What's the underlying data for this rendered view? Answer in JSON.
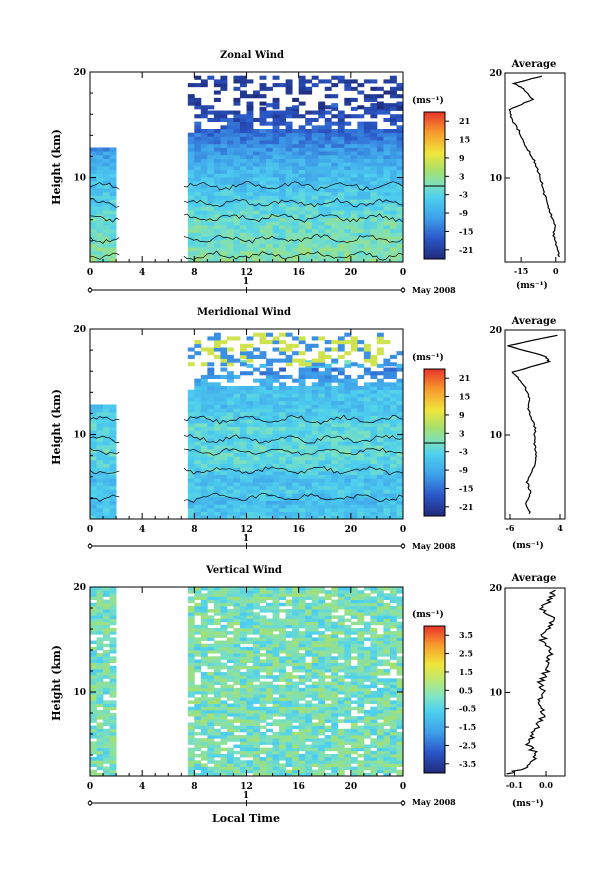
{
  "chart_data": [
    {
      "type": "heatmap",
      "title": "Zonal Wind",
      "ylabel": "Height (km)",
      "unit": "(ms⁻¹)",
      "xlim": [
        0,
        24
      ],
      "ylim": [
        2,
        20
      ],
      "x_ticks": [
        "0",
        "4",
        "8",
        "12",
        "16",
        "20",
        "0"
      ],
      "y_ticks": [
        "10",
        "20"
      ],
      "date_label": "May 2008",
      "day_label": "1",
      "colorbar_ticks": [
        "21",
        "15",
        "9",
        "3",
        "-3",
        "-9",
        "-15",
        "-21"
      ],
      "colorbar_range": [
        -24,
        24
      ],
      "data_gaps_hours": [
        [
          2.3,
          7.2
        ]
      ],
      "profile": {
        "title": "Average",
        "xlabel": "(ms⁻¹)",
        "x_ticks": [
          "-15",
          "0"
        ],
        "xlim": [
          -22,
          4
        ],
        "y_ticks": [
          "10",
          "20"
        ],
        "heights_km": [
          2.5,
          3.5,
          4.5,
          5.5,
          6.5,
          7.5,
          8.5,
          9.5,
          10.5,
          11.5,
          12.5,
          13.5,
          14.5,
          15.5,
          16.5,
          17.5,
          18.5,
          19.0,
          19.7
        ],
        "values": [
          1.5,
          0.3,
          -1.0,
          -0.5,
          -2.0,
          -3.5,
          -5.0,
          -6.0,
          -7.5,
          -9.0,
          -11.5,
          -14.0,
          -16.0,
          -19.0,
          -20.0,
          -10.0,
          -14.0,
          -18.0,
          -6.0
        ]
      }
    },
    {
      "type": "heatmap",
      "title": "Meridional Wind",
      "ylabel": "Height (km)",
      "unit": "(ms⁻¹)",
      "xlim": [
        0,
        24
      ],
      "ylim": [
        2,
        20
      ],
      "x_ticks": [
        "0",
        "4",
        "8",
        "12",
        "16",
        "20",
        "0"
      ],
      "y_ticks": [
        "10",
        "20"
      ],
      "date_label": "May 2008",
      "day_label": "1",
      "colorbar_ticks": [
        "21",
        "15",
        "9",
        "3",
        "-3",
        "-9",
        "-15",
        "-21"
      ],
      "colorbar_range": [
        -24,
        24
      ],
      "data_gaps_hours": [
        [
          2.3,
          7.2
        ]
      ],
      "profile": {
        "title": "Average",
        "xlabel": "(ms⁻¹)",
        "x_ticks": [
          "-6",
          "4"
        ],
        "xlim": [
          -7,
          5
        ],
        "y_ticks": [
          "10",
          "20"
        ],
        "heights_km": [
          2.5,
          3.5,
          4.5,
          5.5,
          6.5,
          7.5,
          8.5,
          9.5,
          10.5,
          11.5,
          12.5,
          13.5,
          14.5,
          15.5,
          16.0,
          17.0,
          17.5,
          18.5,
          19.5
        ],
        "values": [
          -2.0,
          -2.8,
          -1.8,
          -2.6,
          -1.5,
          -1.0,
          -0.8,
          -1.2,
          -0.9,
          -1.6,
          -2.4,
          -2.0,
          -3.0,
          -4.5,
          -5.5,
          1.8,
          1.0,
          -6.5,
          3.5
        ]
      }
    },
    {
      "type": "heatmap",
      "title": "Vertical Wind",
      "ylabel": "Height (km)",
      "xlabel": "Local Time",
      "unit": "(ms⁻¹)",
      "xlim": [
        0,
        24
      ],
      "ylim": [
        2,
        20
      ],
      "x_ticks": [
        "0",
        "4",
        "8",
        "12",
        "16",
        "20",
        "0"
      ],
      "y_ticks": [
        "10",
        "20"
      ],
      "date_label": "May 2008",
      "day_label": "1",
      "colorbar_ticks": [
        "3.5",
        "2.5",
        "1.5",
        "0.5",
        "-0.5",
        "-1.5",
        "-2.5",
        "-3.5"
      ],
      "colorbar_range": [
        -4,
        4
      ],
      "data_gaps_hours": [
        [
          2.3,
          7.2
        ]
      ],
      "profile": {
        "title": "Average",
        "xlabel": "(ms⁻¹)",
        "x_ticks": [
          "-0.1",
          "0.0"
        ],
        "xlim": [
          -0.13,
          0.06
        ],
        "y_ticks": [
          "10",
          "20"
        ],
        "heights_km": [
          2.2,
          3.0,
          4.0,
          5.0,
          6.0,
          7.0,
          8.0,
          9.0,
          10.0,
          11.0,
          12.0,
          13.0,
          14.0,
          15.0,
          16.0,
          17.0,
          18.0,
          19.0,
          19.8
        ],
        "values": [
          -0.12,
          -0.05,
          -0.03,
          -0.06,
          -0.04,
          -0.02,
          -0.01,
          -0.03,
          -0.01,
          -0.02,
          0.0,
          0.01,
          0.02,
          -0.01,
          0.0,
          0.02,
          -0.01,
          0.01,
          0.03
        ]
      }
    }
  ]
}
